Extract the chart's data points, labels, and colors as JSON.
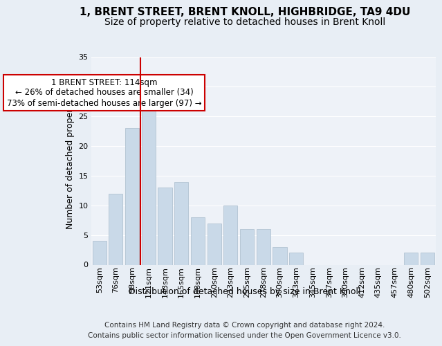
{
  "title_line1": "1, BRENT STREET, BRENT KNOLL, HIGHBRIDGE, TA9 4DU",
  "title_line2": "Size of property relative to detached houses in Brent Knoll",
  "xlabel": "Distribution of detached houses by size in Brent Knoll",
  "ylabel": "Number of detached properties",
  "bar_labels": [
    "53sqm",
    "76sqm",
    "98sqm",
    "121sqm",
    "143sqm",
    "165sqm",
    "188sqm",
    "210sqm",
    "233sqm",
    "255sqm",
    "278sqm",
    "300sqm",
    "323sqm",
    "345sqm",
    "367sqm",
    "390sqm",
    "412sqm",
    "435sqm",
    "457sqm",
    "480sqm",
    "502sqm"
  ],
  "bar_values": [
    4,
    12,
    23,
    29,
    13,
    14,
    8,
    7,
    10,
    6,
    6,
    3,
    2,
    0,
    0,
    0,
    0,
    0,
    0,
    2,
    2
  ],
  "bar_color": "#c9d9e8",
  "bar_edge_color": "#aabccc",
  "vline_x": 2,
  "vline_color": "#cc0000",
  "annotation_text": "1 BRENT STREET: 114sqm\n← 26% of detached houses are smaller (34)\n73% of semi-detached houses are larger (97) →",
  "annotation_box_color": "white",
  "annotation_box_edge": "#cc0000",
  "ylim": [
    0,
    35
  ],
  "yticks": [
    0,
    5,
    10,
    15,
    20,
    25,
    30,
    35
  ],
  "bg_color": "#e8eef5",
  "plot_bg_color": "#eef2f8",
  "footer_line1": "Contains HM Land Registry data © Crown copyright and database right 2024.",
  "footer_line2": "Contains public sector information licensed under the Open Government Licence v3.0.",
  "grid_color": "#ffffff",
  "title_fontsize": 11,
  "subtitle_fontsize": 10,
  "axis_label_fontsize": 9,
  "tick_fontsize": 8,
  "annotation_fontsize": 8.5,
  "footer_fontsize": 7.5
}
